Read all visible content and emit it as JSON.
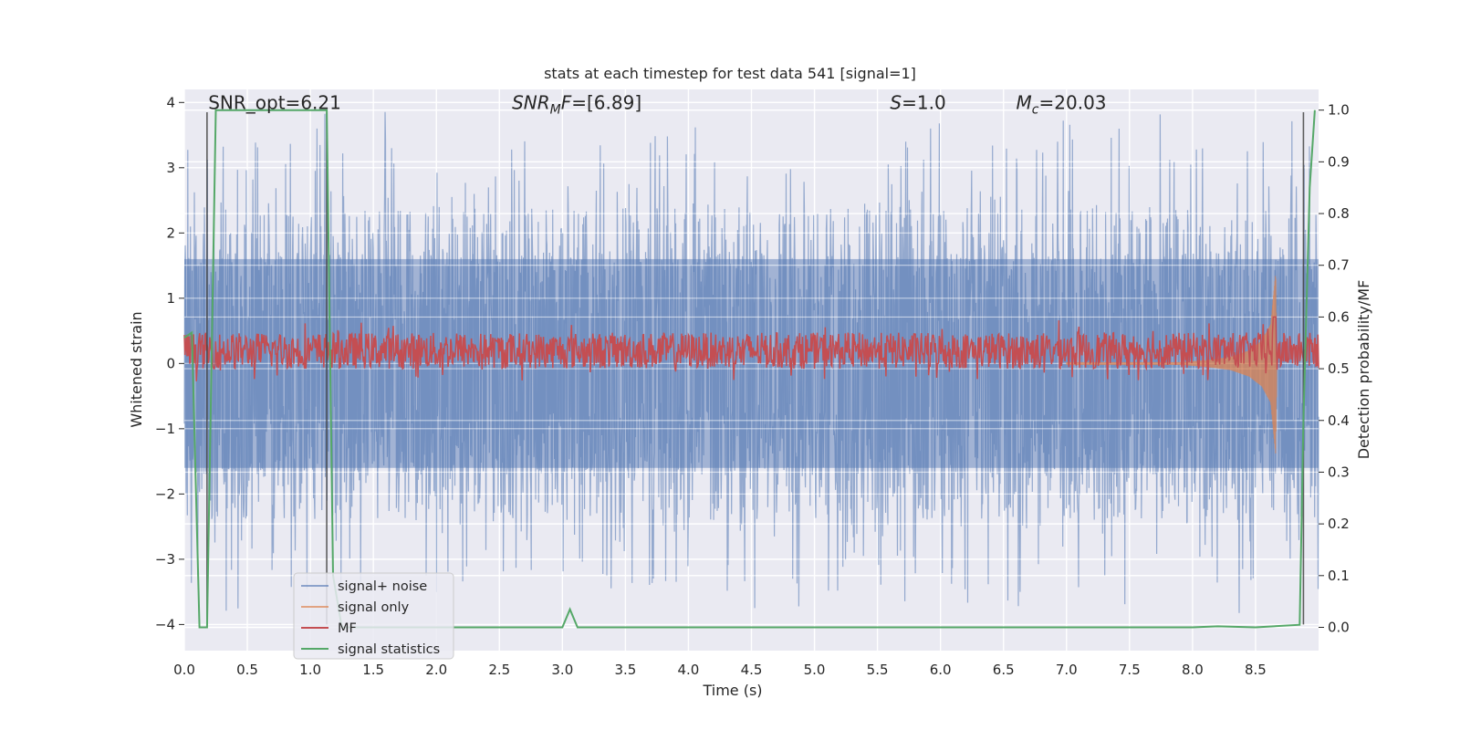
{
  "chart_data": {
    "type": "line",
    "title": "stats at each timestep for test data 541 [signal=1]",
    "xlabel": "Time (s)",
    "ylabel": "Whitened strain",
    "ylabel_right": "Detection probability/MF",
    "xlim": [
      0.0,
      9.0
    ],
    "ylim": [
      -4.4,
      4.2
    ],
    "ylim_right": [
      -0.045,
      1.04
    ],
    "x_ticks": [
      "0.0",
      "0.5",
      "1.0",
      "1.5",
      "2.0",
      "2.5",
      "3.0",
      "3.5",
      "4.0",
      "4.5",
      "5.0",
      "5.5",
      "6.0",
      "6.5",
      "7.0",
      "7.5",
      "8.0",
      "8.5"
    ],
    "x_tick_values": [
      0.0,
      0.5,
      1.0,
      1.5,
      2.0,
      2.5,
      3.0,
      3.5,
      4.0,
      4.5,
      5.0,
      5.5,
      6.0,
      6.5,
      7.0,
      7.5,
      8.0,
      8.5
    ],
    "y_ticks": [
      "4",
      "3",
      "2",
      "1",
      "0",
      "−1",
      "−2",
      "−3",
      "−4"
    ],
    "y_tick_values": [
      4,
      3,
      2,
      1,
      0,
      -1,
      -2,
      -3,
      -4
    ],
    "y_right_ticks": [
      "1.0",
      "0.9",
      "0.8",
      "0.7",
      "0.6",
      "0.5",
      "0.4",
      "0.3",
      "0.2",
      "0.1",
      "0.0"
    ],
    "y_right_tick_values": [
      1.0,
      0.9,
      0.8,
      0.7,
      0.6,
      0.5,
      0.4,
      0.3,
      0.2,
      0.1,
      0.0
    ],
    "grid": true,
    "legend_position": "bottom-left",
    "annotations": [
      {
        "parts": [
          {
            "t": "SNR_opt=6.21",
            "italic": false
          }
        ],
        "x": 0.19,
        "y": 4.0
      },
      {
        "parts": [
          {
            "t": "SNR",
            "italic": true
          },
          {
            "t": "M",
            "italic": true,
            "sub": true
          },
          {
            "t": "F",
            "italic": true
          },
          {
            "t": "=[6.89]",
            "italic": false
          }
        ],
        "x": 2.6,
        "y": 4.0
      },
      {
        "parts": [
          {
            "t": "S",
            "italic": true
          },
          {
            "t": "=1.0",
            "italic": false
          }
        ],
        "x": 5.6,
        "y": 4.0
      },
      {
        "parts": [
          {
            "t": "M",
            "italic": true
          },
          {
            "t": "c",
            "italic": true,
            "sub": true
          },
          {
            "t": "=20.03",
            "italic": false
          }
        ],
        "x": 6.6,
        "y": 4.0
      }
    ],
    "vertical_lines": [
      0.18,
      1.13,
      8.88
    ],
    "series": [
      {
        "name": "signal+ noise",
        "color": "#4c72b0",
        "axis": "left",
        "kind": "noise",
        "x_range": [
          0.0,
          9.0
        ],
        "typical_band": [
          -1.6,
          1.6
        ],
        "extreme_band": [
          -4.0,
          3.9
        ]
      },
      {
        "name": "signal only",
        "color": "#dd8452",
        "axis": "left",
        "kind": "chirp",
        "x": [
          7.9,
          8.1,
          8.3,
          8.45,
          8.55,
          8.62,
          8.66,
          8.67
        ],
        "envelope": [
          0.02,
          0.05,
          0.1,
          0.2,
          0.35,
          0.6,
          1.4,
          0.0
        ]
      },
      {
        "name": "MF",
        "color": "#c44e52",
        "axis": "right",
        "kind": "noisy",
        "x_range": [
          0.0,
          9.0
        ],
        "base": 0.535,
        "band": [
          0.505,
          0.575
        ],
        "peak": {
          "x": 8.65,
          "y": 0.6
        }
      },
      {
        "name": "signal statistics",
        "color": "#55a868",
        "axis": "right",
        "kind": "line",
        "x": [
          0.0,
          0.06,
          0.12,
          0.18,
          0.25,
          0.35,
          0.5,
          0.7,
          0.9,
          1.13,
          1.18,
          1.25,
          1.4,
          1.6,
          2.0,
          2.5,
          3.0,
          3.06,
          3.12,
          3.5,
          4.0,
          5.0,
          6.0,
          7.0,
          8.0,
          8.2,
          8.5,
          8.85,
          8.88,
          8.93,
          8.97
        ],
        "y": [
          0.56,
          0.57,
          0.0,
          0.0,
          1.0,
          1.0,
          1.0,
          1.0,
          1.0,
          1.0,
          0.1,
          0.0,
          0.0,
          0.0,
          0.0,
          0.0,
          0.0,
          0.035,
          0.0,
          0.0,
          0.0,
          0.0,
          0.0,
          0.0,
          0.0,
          0.002,
          0.0,
          0.005,
          0.4,
          0.85,
          1.0
        ]
      }
    ]
  }
}
